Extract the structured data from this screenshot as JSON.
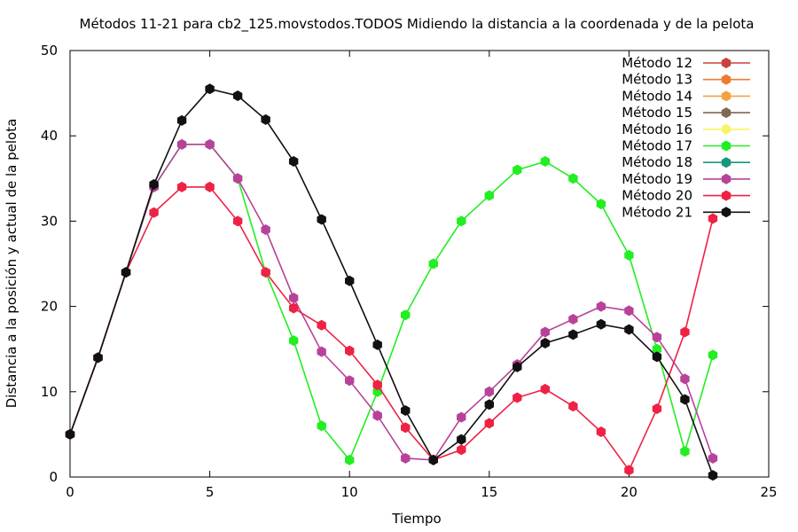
{
  "chart_data": {
    "type": "line",
    "title": "Métodos 11-21 para cb2_125.movstodos.TODOS Midiendo la distancia a la coordenada y de la pelota",
    "xlabel": "Tiempo",
    "ylabel": "Distancia a la posición y actual de la pelota",
    "xlim": [
      0,
      25
    ],
    "ylim": [
      0,
      50
    ],
    "xticks": [
      0,
      5,
      10,
      15,
      20,
      25
    ],
    "yticks": [
      0,
      10,
      20,
      30,
      40,
      50
    ],
    "legend_position": "top-right",
    "grid": false,
    "series": [
      {
        "name": "Método 12",
        "color": "#c8433a",
        "x": [],
        "y": []
      },
      {
        "name": "Método 13",
        "color": "#f07a33",
        "x": [],
        "y": []
      },
      {
        "name": "Método 14",
        "color": "#f5a240",
        "x": [],
        "y": []
      },
      {
        "name": "Método 15",
        "color": "#7d6a4f",
        "x": [],
        "y": []
      },
      {
        "name": "Método 16",
        "color": "#f5f56b",
        "x": [],
        "y": []
      },
      {
        "name": "Método 17",
        "color": "#22ee22",
        "x": [
          0,
          1,
          2,
          3,
          4,
          5,
          6,
          7,
          8,
          9,
          10,
          11,
          12,
          13,
          14,
          15,
          16,
          17,
          18,
          19,
          20,
          21,
          22,
          23
        ],
        "y": [
          5,
          14,
          24,
          34,
          39,
          39,
          35,
          24,
          16,
          6,
          2,
          10,
          19,
          25,
          30,
          33,
          36,
          37,
          35,
          32,
          26,
          15,
          3,
          14.3
        ]
      },
      {
        "name": "Método 18",
        "color": "#14977a",
        "x": [],
        "y": []
      },
      {
        "name": "Método 19",
        "color": "#b8429a",
        "x": [
          0,
          1,
          2,
          3,
          4,
          5,
          6,
          7,
          8,
          9,
          10,
          11,
          12,
          13,
          14,
          15,
          16,
          17,
          18,
          19,
          20,
          21,
          22,
          23
        ],
        "y": [
          5,
          14,
          24,
          34,
          39,
          39,
          35,
          29,
          21,
          14.7,
          11.3,
          7.2,
          2.2,
          2,
          7,
          10,
          13.2,
          17,
          18.5,
          20,
          19.5,
          16.4,
          11.5,
          2.2
        ]
      },
      {
        "name": "Método 20",
        "color": "#ee2244",
        "x": [
          0,
          1,
          2,
          3,
          4,
          5,
          6,
          7,
          8,
          9,
          10,
          11,
          12,
          13,
          14,
          15,
          16,
          17,
          18,
          19,
          20,
          21,
          22,
          23
        ],
        "y": [
          5,
          14,
          24,
          31,
          34,
          34,
          30,
          24,
          19.8,
          17.8,
          14.8,
          10.8,
          5.8,
          2,
          3.2,
          6.3,
          9.3,
          10.3,
          8.3,
          5.3,
          0.8,
          8,
          17,
          30.3
        ]
      },
      {
        "name": "Método 21",
        "color": "#111111",
        "x": [
          0,
          1,
          2,
          3,
          4,
          5,
          6,
          7,
          8,
          9,
          10,
          11,
          12,
          13,
          14,
          15,
          16,
          17,
          18,
          19,
          20,
          21,
          22,
          23
        ],
        "y": [
          5,
          14,
          24,
          34.3,
          41.8,
          45.5,
          44.7,
          41.9,
          37,
          30.2,
          23,
          15.5,
          7.8,
          2,
          4.4,
          8.5,
          12.9,
          15.7,
          16.7,
          17.9,
          17.3,
          14.1,
          9.1,
          0.2
        ]
      }
    ]
  }
}
